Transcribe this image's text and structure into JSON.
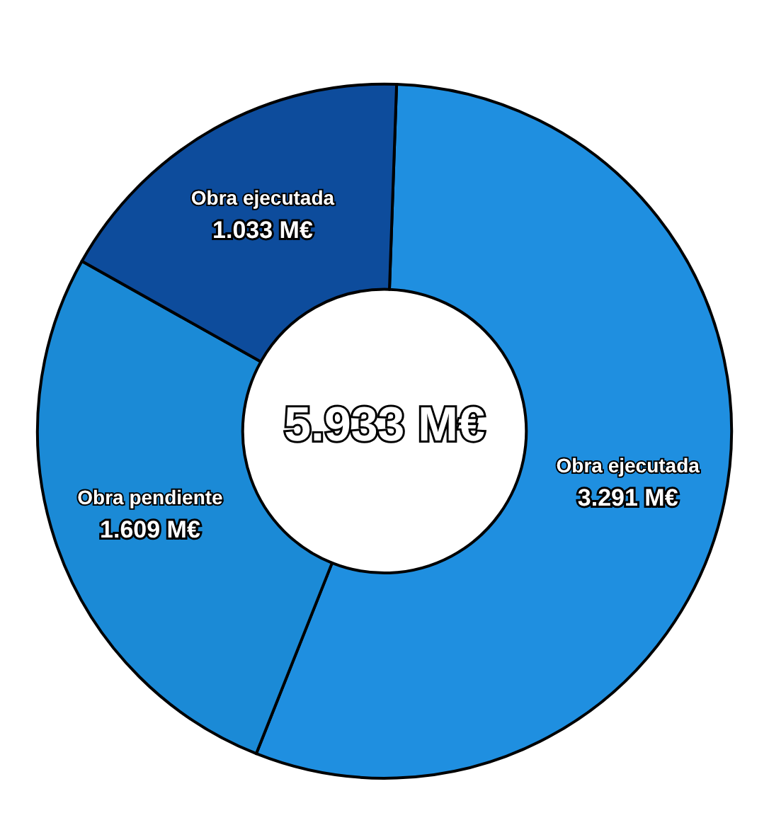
{
  "chart_data": {
    "type": "donut",
    "categories": [
      "Obra ejecutada",
      "Obra pendiente",
      "Obra ejecutada"
    ],
    "values": [
      3.291,
      1.609,
      1.033
    ],
    "value_labels": [
      "3.291 M€",
      "1.609 M€",
      "1.033 M€"
    ],
    "colors": [
      "#1f8fe0",
      "#1b8ad6",
      "#0d4c9c"
    ],
    "annotations": [
      "5.933 M€"
    ],
    "legend": false
  }
}
